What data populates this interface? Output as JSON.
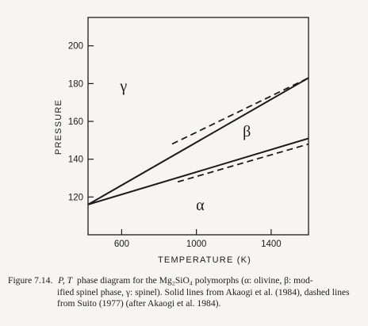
{
  "chart_data": {
    "type": "line",
    "xlabel": "TEMPERATURE (K)",
    "ylabel": "PRESSURE",
    "xlim": [
      420,
      1600
    ],
    "ylim": [
      100,
      215
    ],
    "xticks": [
      600,
      1000,
      1400
    ],
    "yticks": [
      120,
      140,
      160,
      180,
      200
    ],
    "grid": false,
    "series": [
      {
        "style": "solid",
        "x": [
          420,
          1600
        ],
        "y": [
          116,
          183
        ]
      },
      {
        "style": "solid",
        "x": [
          420,
          1600
        ],
        "y": [
          116,
          151
        ]
      },
      {
        "style": "dashed",
        "x": [
          870,
          1600
        ],
        "y": [
          148,
          183
        ]
      },
      {
        "style": "dashed",
        "x": [
          900,
          1600
        ],
        "y": [
          128,
          148
        ]
      }
    ],
    "annotations": [
      {
        "text": "γ",
        "x": 610,
        "y": 176
      },
      {
        "text": "β",
        "x": 1270,
        "y": 152
      },
      {
        "text": "α",
        "x": 1020,
        "y": 113
      }
    ]
  },
  "caption": {
    "label": "Figure 7.14.",
    "title_italic": "P, T",
    "line1_rest": "phase diagram for the Mg₂SiO₄ polymorphs (α: olivine, β: mod-",
    "line2": "ified spinel phase, γ: spinel). Solid lines from Akaogi et al. (1984), dashed lines",
    "line3": "from Suito (1977) (after Akaogi et al. 1984)."
  }
}
